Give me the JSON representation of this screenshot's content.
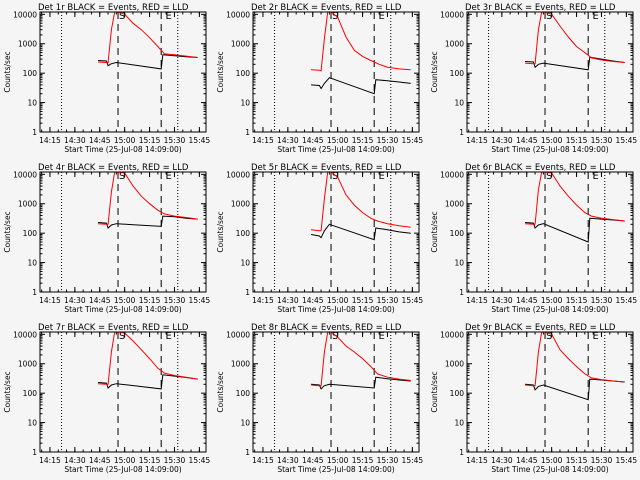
{
  "figure": {
    "shared": {
      "xlabel": "Start Time (25-Jul-08 14:09:00)",
      "ylabel": "Counts/sec",
      "xticks": [
        "14:15",
        "14:30",
        "14:45",
        "15:00",
        "15:15",
        "15:30",
        "15:45"
      ],
      "yticks": [
        "1",
        "10",
        "100",
        "1000",
        "10000"
      ],
      "marker_labels": {
        "s": "S",
        "e": "E"
      }
    }
  },
  "chart_data": [
    {
      "type": "line",
      "title": "Det 1r BLACK = Events, RED = LLD",
      "ylog": true,
      "ylim": [
        1,
        12000
      ],
      "xlim": [
        "14:09",
        "15:49"
      ],
      "markers": {
        "dotted": [
          "14:22",
          "15:32"
        ],
        "dashed": [
          "14:56",
          "15:22"
        ],
        "s": "14:56",
        "e": "15:24"
      },
      "series": [
        {
          "name": "BLACK = Events",
          "color": "#000000",
          "x": [
            "14:44",
            "14:49",
            "14:50",
            "14:52",
            "14:55",
            "15:22",
            "15:23",
            "15:30",
            "15:37",
            "15:44"
          ],
          "y": [
            270,
            260,
            180,
            210,
            230,
            140,
            420,
            390,
            360,
            340
          ]
        },
        {
          "name": "RED = LLD",
          "color": "#ff0000",
          "x": [
            "14:44",
            "14:49",
            "14:50",
            "14:52",
            "14:54",
            "14:56",
            "15:00",
            "15:05",
            "15:10",
            "15:15",
            "15:20",
            "15:24",
            "15:30",
            "15:37",
            "15:44"
          ],
          "y": [
            240,
            230,
            230,
            3000,
            12000,
            12000,
            10000,
            5000,
            3000,
            1600,
            800,
            450,
            420,
            380,
            340
          ]
        }
      ]
    },
    {
      "type": "line",
      "title": "Det 2r BLACK = Events, RED = LLD",
      "ylog": true,
      "ylim": [
        1,
        12000
      ],
      "xlim": [
        "14:09",
        "15:49"
      ],
      "markers": {
        "dotted": [
          "14:22",
          "15:32"
        ],
        "dashed": [
          "14:56",
          "15:22"
        ],
        "s": "14:56",
        "e": "15:24"
      },
      "series": [
        {
          "name": "BLACK = Events",
          "color": "#000000",
          "x": [
            "14:44",
            "14:49",
            "14:50",
            "14:52",
            "14:55",
            "15:22",
            "15:23",
            "15:30",
            "15:37",
            "15:44"
          ],
          "y": [
            40,
            38,
            30,
            45,
            70,
            20,
            60,
            55,
            50,
            45
          ]
        },
        {
          "name": "RED = LLD",
          "color": "#ff0000",
          "x": [
            "14:44",
            "14:49",
            "14:50",
            "14:52",
            "14:54",
            "14:56",
            "15:00",
            "15:05",
            "15:10",
            "15:15",
            "15:20",
            "15:25",
            "15:30",
            "15:37",
            "15:44"
          ],
          "y": [
            130,
            125,
            120,
            1500,
            12000,
            12000,
            8000,
            1700,
            600,
            370,
            270,
            200,
            160,
            140,
            130
          ]
        }
      ]
    },
    {
      "type": "line",
      "title": "Det 3r BLACK = Events, RED = LLD",
      "ylog": true,
      "ylim": [
        1,
        12000
      ],
      "xlim": [
        "14:09",
        "15:49"
      ],
      "markers": {
        "dotted": [
          "14:22",
          "15:32"
        ],
        "dashed": [
          "14:56",
          "15:22"
        ],
        "s": "14:56",
        "e": "15:24"
      },
      "series": [
        {
          "name": "BLACK = Events",
          "color": "#000000",
          "x": [
            "14:44",
            "14:49",
            "14:50",
            "14:52",
            "14:55",
            "15:22",
            "15:23",
            "15:30",
            "15:37",
            "15:44"
          ],
          "y": [
            250,
            240,
            160,
            200,
            220,
            130,
            350,
            300,
            260,
            230
          ]
        },
        {
          "name": "RED = LLD",
          "color": "#ff0000",
          "x": [
            "14:44",
            "14:49",
            "14:50",
            "14:52",
            "14:54",
            "14:56",
            "15:00",
            "15:05",
            "15:10",
            "15:15",
            "15:20",
            "15:24",
            "15:30",
            "15:37",
            "15:44"
          ],
          "y": [
            220,
            210,
            210,
            3000,
            12000,
            12000,
            10000,
            4000,
            1700,
            800,
            500,
            330,
            280,
            250,
            230
          ]
        }
      ]
    },
    {
      "type": "line",
      "title": "Det 4r BLACK = Events, RED = LLD",
      "ylog": true,
      "ylim": [
        1,
        12000
      ],
      "xlim": [
        "14:09",
        "15:49"
      ],
      "markers": {
        "dotted": [
          "14:22",
          "15:32"
        ],
        "dashed": [
          "14:56",
          "15:22"
        ],
        "s": "14:56",
        "e": "15:24"
      },
      "series": [
        {
          "name": "BLACK = Events",
          "color": "#000000",
          "x": [
            "14:44",
            "14:49",
            "14:50",
            "14:52",
            "14:55",
            "15:22",
            "15:23",
            "15:30",
            "15:37",
            "15:44"
          ],
          "y": [
            230,
            220,
            150,
            190,
            210,
            170,
            380,
            360,
            320,
            300
          ]
        },
        {
          "name": "RED = LLD",
          "color": "#ff0000",
          "x": [
            "14:44",
            "14:49",
            "14:50",
            "14:52",
            "14:54",
            "14:56",
            "15:00",
            "15:05",
            "15:10",
            "15:15",
            "15:20",
            "15:24",
            "15:30",
            "15:37",
            "15:44"
          ],
          "y": [
            210,
            200,
            200,
            2500,
            12000,
            12000,
            11000,
            4000,
            1800,
            1000,
            600,
            450,
            380,
            340,
            300
          ]
        }
      ]
    },
    {
      "type": "line",
      "title": "Det 5r BLACK = Events, RED = LLD",
      "ylog": true,
      "ylim": [
        1,
        12000
      ],
      "xlim": [
        "14:09",
        "15:49"
      ],
      "markers": {
        "dotted": [
          "14:22",
          "15:32"
        ],
        "dashed": [
          "14:56",
          "15:22"
        ],
        "s": "14:56",
        "e": "15:24"
      },
      "series": [
        {
          "name": "BLACK = Events",
          "color": "#000000",
          "x": [
            "14:44",
            "14:49",
            "14:50",
            "14:52",
            "14:55",
            "15:22",
            "15:23",
            "15:30",
            "15:37",
            "15:44"
          ],
          "y": [
            90,
            80,
            70,
            120,
            200,
            60,
            150,
            130,
            110,
            100
          ]
        },
        {
          "name": "RED = LLD",
          "color": "#ff0000",
          "x": [
            "14:44",
            "14:49",
            "14:50",
            "14:52",
            "14:54",
            "14:56",
            "15:00",
            "15:05",
            "15:10",
            "15:15",
            "15:20",
            "15:24",
            "15:30",
            "15:37",
            "15:44"
          ],
          "y": [
            130,
            120,
            120,
            1500,
            12000,
            12000,
            8000,
            2000,
            900,
            500,
            320,
            260,
            210,
            180,
            160
          ]
        }
      ]
    },
    {
      "type": "line",
      "title": "Det 6r BLACK = Events, RED = LLD",
      "ylog": true,
      "ylim": [
        1,
        12000
      ],
      "xlim": [
        "14:09",
        "15:49"
      ],
      "markers": {
        "dotted": [
          "14:22",
          "15:32"
        ],
        "dashed": [
          "14:56",
          "15:22"
        ],
        "s": "14:56",
        "e": "15:24"
      },
      "series": [
        {
          "name": "BLACK = Events",
          "color": "#000000",
          "x": [
            "14:44",
            "14:49",
            "14:50",
            "14:52",
            "14:55",
            "15:22",
            "15:23",
            "15:30",
            "15:37",
            "15:44"
          ],
          "y": [
            230,
            220,
            150,
            190,
            210,
            50,
            320,
            300,
            280,
            260
          ]
        },
        {
          "name": "RED = LLD",
          "color": "#ff0000",
          "x": [
            "14:44",
            "14:49",
            "14:50",
            "14:52",
            "14:54",
            "14:56",
            "15:00",
            "15:05",
            "15:10",
            "15:15",
            "15:20",
            "15:24",
            "15:30",
            "15:37",
            "15:44"
          ],
          "y": [
            210,
            200,
            200,
            3000,
            12000,
            12000,
            11000,
            4000,
            1800,
            900,
            500,
            380,
            320,
            290,
            260
          ]
        }
      ]
    },
    {
      "type": "line",
      "title": "Det 7r BLACK = Events, RED = LLD",
      "ylog": true,
      "ylim": [
        1,
        12000
      ],
      "xlim": [
        "14:09",
        "15:49"
      ],
      "markers": {
        "dotted": [
          "14:22",
          "15:32"
        ],
        "dashed": [
          "14:56",
          "15:22"
        ],
        "s": "14:56",
        "e": "15:24"
      },
      "series": [
        {
          "name": "BLACK = Events",
          "color": "#000000",
          "x": [
            "14:44",
            "14:49",
            "14:50",
            "14:52",
            "14:55",
            "15:22",
            "15:23",
            "15:30",
            "15:37",
            "15:44"
          ],
          "y": [
            230,
            220,
            150,
            190,
            210,
            140,
            420,
            380,
            340,
            300
          ]
        },
        {
          "name": "RED = LLD",
          "color": "#ff0000",
          "x": [
            "14:44",
            "14:49",
            "14:50",
            "14:52",
            "14:54",
            "14:56",
            "15:00",
            "15:05",
            "15:10",
            "15:15",
            "15:20",
            "15:24",
            "15:30",
            "15:37",
            "15:44"
          ],
          "y": [
            210,
            200,
            200,
            2500,
            12000,
            12000,
            11000,
            6000,
            3000,
            1500,
            700,
            480,
            400,
            350,
            300
          ]
        }
      ]
    },
    {
      "type": "line",
      "title": "Det 8r BLACK = Events, RED = LLD",
      "ylog": true,
      "ylim": [
        1,
        12000
      ],
      "xlim": [
        "14:09",
        "15:49"
      ],
      "markers": {
        "dotted": [
          "14:22",
          "15:32"
        ],
        "dashed": [
          "14:56",
          "15:22"
        ],
        "s": "14:56",
        "e": "15:24"
      },
      "series": [
        {
          "name": "BLACK = Events",
          "color": "#000000",
          "x": [
            "14:44",
            "14:49",
            "14:50",
            "14:52",
            "14:55",
            "15:22",
            "15:23",
            "15:30",
            "15:37",
            "15:44"
          ],
          "y": [
            200,
            190,
            140,
            180,
            200,
            150,
            350,
            310,
            280,
            260
          ]
        },
        {
          "name": "RED = LLD",
          "color": "#ff0000",
          "x": [
            "14:44",
            "14:49",
            "14:50",
            "14:52",
            "14:54",
            "14:56",
            "15:00",
            "15:05",
            "15:10",
            "15:15",
            "15:20",
            "15:24",
            "15:30",
            "15:37",
            "15:44"
          ],
          "y": [
            190,
            180,
            180,
            2500,
            12000,
            12000,
            8000,
            4000,
            2500,
            1500,
            800,
            450,
            350,
            300,
            270
          ]
        }
      ]
    },
    {
      "type": "line",
      "title": "Det 9r BLACK = Events, RED = LLD",
      "ylog": true,
      "ylim": [
        1,
        12000
      ],
      "xlim": [
        "14:09",
        "15:49"
      ],
      "markers": {
        "dotted": [
          "14:22",
          "15:32"
        ],
        "dashed": [
          "14:56",
          "15:22"
        ],
        "s": "14:56",
        "e": "15:24"
      },
      "series": [
        {
          "name": "BLACK = Events",
          "color": "#000000",
          "x": [
            "14:44",
            "14:49",
            "14:50",
            "14:52",
            "14:55",
            "15:22",
            "15:23",
            "15:30",
            "15:37",
            "15:44"
          ],
          "y": [
            200,
            190,
            130,
            170,
            190,
            60,
            300,
            280,
            260,
            240
          ]
        },
        {
          "name": "RED = LLD",
          "color": "#ff0000",
          "x": [
            "14:44",
            "14:49",
            "14:50",
            "14:52",
            "14:54",
            "14:56",
            "15:00",
            "15:05",
            "15:10",
            "15:15",
            "15:20",
            "15:24",
            "15:30",
            "15:37",
            "15:44"
          ],
          "y": [
            190,
            180,
            180,
            2500,
            12000,
            12000,
            10000,
            3000,
            1500,
            800,
            450,
            330,
            290,
            260,
            240
          ]
        }
      ]
    }
  ]
}
